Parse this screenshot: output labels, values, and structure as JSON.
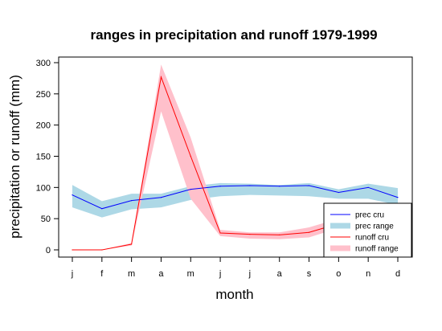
{
  "chart_data": {
    "type": "line",
    "title": "ranges in precipitation and runoff 1979-1999",
    "xlabel": "month",
    "ylabel": "precipitation or runoff (mm)",
    "categories": [
      "j",
      "f",
      "m",
      "a",
      "m",
      "j",
      "j",
      "a",
      "s",
      "o",
      "n",
      "d"
    ],
    "yticks": [
      "0",
      "50",
      "100",
      "150",
      "200",
      "250",
      "300"
    ],
    "ylim": [
      0,
      300
    ],
    "grid": false,
    "legend_position": "bottom-right",
    "series": [
      {
        "name": "prec cru",
        "kind": "line",
        "color": "#0000ff",
        "values": [
          88,
          66,
          79,
          84,
          97,
          102,
          103,
          102,
          103,
          92,
          100,
          84
        ]
      },
      {
        "name": "prec range",
        "kind": "band",
        "color": "#add8e6",
        "lower": [
          68,
          52,
          65,
          68,
          80,
          86,
          88,
          87,
          86,
          82,
          82,
          72
        ],
        "upper": [
          104,
          78,
          90,
          90,
          102,
          107,
          106,
          104,
          107,
          97,
          106,
          99
        ]
      },
      {
        "name": "runoff cru",
        "kind": "line",
        "color": "#ff0000",
        "values": [
          0,
          0,
          9,
          277,
          150,
          27,
          25,
          24,
          28,
          42,
          50,
          55
        ]
      },
      {
        "name": "runoff range",
        "kind": "band",
        "color": "#ffc0cb",
        "lower": [
          0,
          0,
          7,
          222,
          82,
          22,
          18,
          17,
          20,
          35,
          42,
          47
        ],
        "upper": [
          0,
          0,
          11,
          297,
          180,
          32,
          28,
          28,
          36,
          50,
          58,
          63
        ]
      }
    ]
  }
}
